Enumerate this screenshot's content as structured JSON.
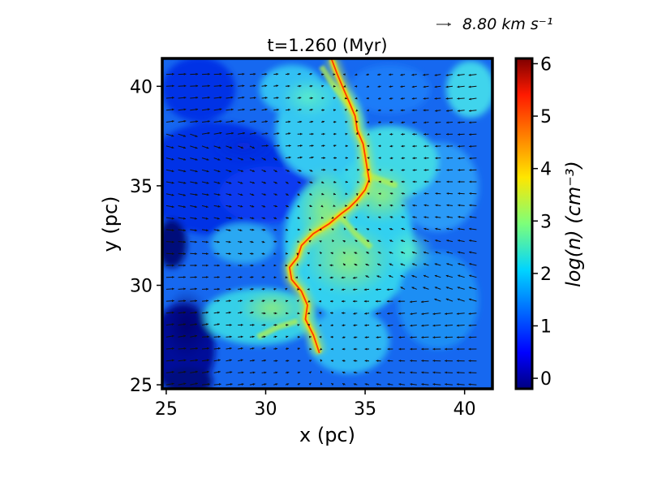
{
  "chart_data": {
    "type": "heatmap",
    "title": "t=1.260 (Myr)",
    "xlabel": "x (pc)",
    "ylabel": "y (pc)",
    "xlim": [
      24.8,
      41.4
    ],
    "ylim": [
      24.8,
      41.4
    ],
    "xticks": [
      25,
      30,
      35,
      40
    ],
    "yticks": [
      25,
      30,
      35,
      40
    ],
    "xtick_labels": [
      "25",
      "30",
      "35",
      "40"
    ],
    "ytick_labels": [
      "25",
      "30",
      "35",
      "40"
    ],
    "colorbar": {
      "label": "log(n) (cm⁻³)",
      "range": [
        -0.2,
        6.1
      ],
      "ticks": [
        0,
        1,
        2,
        3,
        4,
        5,
        6
      ],
      "tick_labels": [
        "0",
        "1",
        "2",
        "3",
        "4",
        "5",
        "6"
      ],
      "colormap": "jet"
    },
    "quiver_key": {
      "label": "8.80 km s⁻¹",
      "value_km_s": 8.8
    },
    "filament_path": [
      [
        33.3,
        41.4
      ],
      [
        33.6,
        40.6
      ],
      [
        33.9,
        39.9
      ],
      [
        34.2,
        39.2
      ],
      [
        34.5,
        38.5
      ],
      [
        34.6,
        37.8
      ],
      [
        34.9,
        37.1
      ],
      [
        35.0,
        36.5
      ],
      [
        35.1,
        35.9
      ],
      [
        35.2,
        35.3
      ],
      [
        35.0,
        34.8
      ],
      [
        34.6,
        34.3
      ],
      [
        34.2,
        33.9
      ],
      [
        33.8,
        33.6
      ],
      [
        33.2,
        33.1
      ],
      [
        32.4,
        32.6
      ],
      [
        31.8,
        32.0
      ],
      [
        31.6,
        31.4
      ],
      [
        31.2,
        30.9
      ],
      [
        31.3,
        30.3
      ],
      [
        31.8,
        29.7
      ],
      [
        32.1,
        29.0
      ],
      [
        32.0,
        28.3
      ],
      [
        32.4,
        27.5
      ],
      [
        32.7,
        26.6
      ]
    ],
    "secondary_filaments": [
      [
        [
          34.9,
          35.6
        ],
        [
          35.8,
          35.3
        ],
        [
          36.6,
          35.0
        ]
      ],
      [
        [
          34.5,
          38.6
        ],
        [
          33.9,
          39.4
        ],
        [
          33.3,
          40.2
        ],
        [
          32.8,
          41.0
        ]
      ],
      [
        [
          31.6,
          28.2
        ],
        [
          30.6,
          27.9
        ],
        [
          29.6,
          27.4
        ]
      ],
      [
        [
          33.8,
          33.4
        ],
        [
          34.5,
          32.6
        ],
        [
          35.3,
          31.9
        ]
      ]
    ]
  }
}
